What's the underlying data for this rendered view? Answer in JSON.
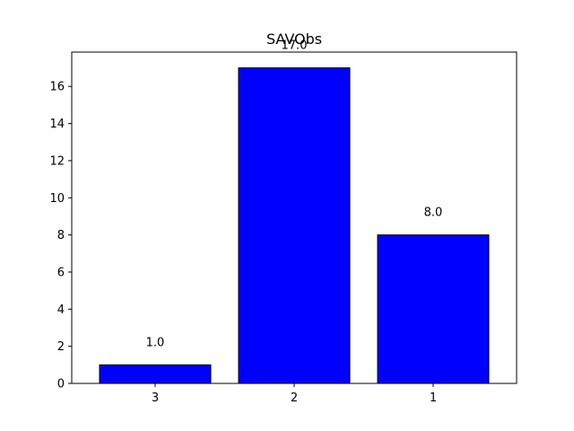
{
  "chart_data": {
    "type": "bar",
    "title": "SAVObs",
    "xlabel": "",
    "ylabel": "",
    "categories": [
      "3",
      "2",
      "1"
    ],
    "values": [
      1.0,
      17.0,
      8.0
    ],
    "value_labels": [
      "1.0",
      "17.0",
      "8.0"
    ],
    "ylim": [
      0,
      17.85
    ],
    "yticks": [
      0,
      2,
      4,
      6,
      8,
      10,
      12,
      14,
      16
    ],
    "bar_color": "#0000ff",
    "bar_edge_color": "#000000",
    "grid": false,
    "legend": "none"
  }
}
